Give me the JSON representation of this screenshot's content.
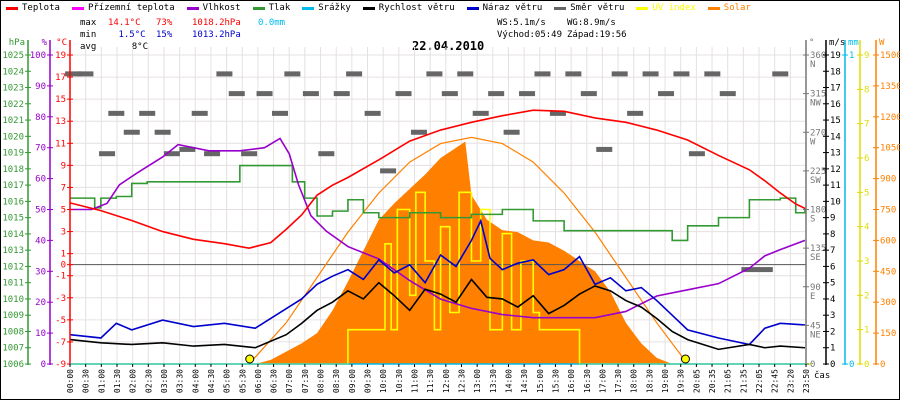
{
  "legend": [
    {
      "label": "Teplota",
      "color": "#ff0000"
    },
    {
      "label": "Přízemní teplota",
      "color": "#ff00ff"
    },
    {
      "label": "Vlhkost",
      "color": "#9900cc"
    },
    {
      "label": "Tlak",
      "color": "#339933"
    },
    {
      "label": "Srážky",
      "color": "#00bbee"
    },
    {
      "label": "Rychlost větru",
      "color": "#000000"
    },
    {
      "label": "Náraz větru",
      "color": "#0000cc"
    },
    {
      "label": "Směr větru",
      "color": "#666666"
    },
    {
      "label": "UV index",
      "color": "#ffff00"
    },
    {
      "label": "Solar",
      "color": "#ff8000"
    }
  ],
  "stats": {
    "max_label": "max",
    "max_temp": "14.1°C",
    "max_hum": "73%",
    "max_press": "1018.2hPa",
    "max_rain": "0.0mm",
    "min_label": "min",
    "min_temp": "1.5°C",
    "min_hum": "15%",
    "min_press": "1013.2hPa",
    "avg_label": "avg",
    "avg_temp": "8°C"
  },
  "wind_info": {
    "ws": "WS:5.1m/s",
    "wg": "WG:8.9m/s",
    "sunrise": "Východ:05:49",
    "sunset": "Západ:19:56"
  },
  "chart_data": {
    "type": "line",
    "title": "22.04.2010",
    "xlabel": "čas",
    "x_tick_labels": [
      "00:00",
      "00:30",
      "01:00",
      "01:30",
      "02:00",
      "02:30",
      "03:00",
      "03:30",
      "04:00",
      "04:30",
      "05:00",
      "05:30",
      "06:00",
      "06:30",
      "07:00",
      "07:30",
      "08:00",
      "08:30",
      "09:00",
      "09:30",
      "10:00",
      "10:30",
      "11:00",
      "11:30",
      "12:00",
      "12:30",
      "13:00",
      "13:30",
      "14:00",
      "14:30",
      "15:00",
      "15:30",
      "16:00",
      "16:30",
      "17:00",
      "17:30",
      "18:00",
      "18:30",
      "19:00",
      "19:30",
      "20:05",
      "20:35",
      "21:05",
      "21:35",
      "22:05",
      "22:45",
      "23:20",
      "23:50"
    ],
    "axes": {
      "hPa": {
        "unit": "hPa",
        "range": [
          1006,
          1025
        ],
        "ticks": [
          1006,
          1007,
          1008,
          1009,
          1010,
          1011,
          1012,
          1013,
          1014,
          1015,
          1016,
          1017,
          1018,
          1019,
          1020,
          1021,
          1022,
          1023,
          1024,
          1025
        ]
      },
      "pct": {
        "unit": "%",
        "range": [
          0,
          100
        ],
        "ticks": [
          0,
          10,
          20,
          30,
          40,
          50,
          60,
          70,
          80,
          90,
          100
        ]
      },
      "temp": {
        "unit": "°C",
        "range": [
          -9,
          19
        ],
        "ticks": [
          -9,
          -7,
          -5,
          -3,
          -1,
          0,
          1,
          3,
          5,
          7,
          9,
          11,
          13,
          15,
          17,
          19
        ]
      },
      "deg": {
        "unit": "°",
        "range": [
          0,
          360
        ],
        "ticks": [
          0,
          45,
          90,
          135,
          180,
          225,
          270,
          315,
          360
        ],
        "names": [
          "",
          "NE",
          "E",
          "SE",
          "S",
          "SW",
          "W",
          "NW",
          "N"
        ]
      },
      "ms": {
        "unit": "m/s",
        "range": [
          0,
          19
        ],
        "ticks": [
          0,
          1,
          2,
          3,
          4,
          5,
          6,
          7,
          8,
          9,
          10,
          11,
          12,
          13,
          14,
          15,
          16,
          17,
          18,
          19
        ]
      },
      "mm": {
        "unit": "mm",
        "range": [
          0,
          1
        ],
        "ticks": [
          0,
          1
        ]
      },
      "uv": {
        "unit": "",
        "range": [
          0,
          9
        ],
        "ticks": [
          0,
          1,
          2,
          3,
          4,
          5,
          6,
          7,
          8,
          9
        ]
      },
      "W": {
        "unit": "W",
        "range": [
          0,
          1500
        ],
        "ticks": [
          0,
          150,
          300,
          450,
          600,
          750,
          900,
          1050,
          1200,
          1350,
          1500
        ]
      }
    },
    "series": [
      {
        "name": "Teplota",
        "axis": "temp",
        "x": [
          0,
          1,
          2,
          3,
          4,
          5,
          5.8,
          6.5,
          7,
          7.5,
          8,
          8.5,
          9,
          10,
          11,
          12,
          13,
          14,
          15,
          16,
          17,
          18,
          19,
          20,
          21,
          22,
          22.5,
          23,
          23.5,
          23.8
        ],
        "y": [
          5.6,
          4.9,
          4.0,
          3.0,
          2.3,
          1.9,
          1.5,
          2.0,
          3.2,
          4.5,
          6.3,
          7.2,
          7.9,
          9.5,
          11.2,
          12.2,
          12.9,
          13.5,
          14.0,
          13.9,
          13.3,
          12.9,
          12.2,
          11.3,
          9.9,
          8.6,
          7.6,
          6.5,
          5.5,
          5.1
        ]
      },
      {
        "name": "Vlhkost",
        "axis": "pct",
        "x": [
          0,
          0.7,
          1.2,
          1.6,
          2.2,
          3,
          3.5,
          4.5,
          5.5,
          6.3,
          6.8,
          7.1,
          7.4,
          7.8,
          8.3,
          9,
          10,
          11,
          12,
          13,
          14,
          15,
          16,
          17,
          18,
          19,
          20,
          21,
          22,
          22.5,
          23,
          23.8
        ],
        "y": [
          50,
          50,
          52,
          58,
          62,
          67,
          71,
          69,
          69,
          70,
          73,
          68,
          58,
          48,
          43,
          38,
          34,
          27,
          21,
          18,
          16,
          15,
          15,
          15,
          17,
          22,
          24,
          26,
          31,
          35,
          37,
          40
        ]
      },
      {
        "name": "Tlak",
        "axis": "hPa",
        "x": [
          0,
          0.8,
          1,
          1.5,
          2,
          2.5,
          5,
          5.5,
          7,
          7.2,
          7.6,
          8,
          8.5,
          9,
          9.5,
          10,
          11,
          12,
          13,
          14,
          15,
          16,
          17,
          18,
          19,
          19.5,
          20,
          21,
          22,
          23,
          23.5,
          23.8
        ],
        "y": [
          1016.2,
          1015.6,
          1016.2,
          1016.3,
          1017.1,
          1017.2,
          1017.2,
          1018.2,
          1018.2,
          1017.2,
          1016.2,
          1015.1,
          1015.4,
          1016.1,
          1015.3,
          1015.0,
          1015.3,
          1015.0,
          1015.2,
          1015.5,
          1014.8,
          1014.2,
          1014.2,
          1014.2,
          1014.2,
          1013.6,
          1014.5,
          1015.0,
          1016.1,
          1016.2,
          1015.3,
          1015.6
        ]
      },
      {
        "name": "Rychlost větru",
        "axis": "ms",
        "x": [
          0,
          1,
          2,
          3,
          4,
          5,
          6,
          7,
          7.5,
          8,
          8.5,
          9,
          9.5,
          10,
          10.5,
          11,
          11.5,
          12,
          12.5,
          13,
          13.5,
          14,
          14.5,
          15,
          15.5,
          16,
          16.5,
          17,
          17.5,
          18,
          18.5,
          19,
          19.5,
          20,
          21,
          22,
          22.5,
          23,
          23.8
        ],
        "y": [
          1.5,
          1.3,
          1.2,
          1.3,
          1.1,
          1.2,
          1.0,
          1.8,
          2.5,
          3.3,
          3.8,
          4.5,
          4.0,
          5.0,
          4.2,
          3.3,
          4.6,
          4.3,
          3.8,
          5.2,
          4.1,
          4.0,
          3.5,
          4.2,
          3.1,
          3.6,
          4.3,
          4.8,
          4.5,
          3.9,
          3.5,
          2.8,
          2.0,
          1.5,
          0.9,
          1.2,
          1.0,
          1.1,
          1.0
        ]
      },
      {
        "name": "Náraz větru",
        "axis": "ms",
        "x": [
          0,
          1,
          1.5,
          2,
          3,
          4,
          5,
          6,
          7,
          7.5,
          8,
          8.5,
          9,
          9.5,
          10,
          10.5,
          11,
          11.5,
          12,
          12.5,
          13,
          13.3,
          13.6,
          14,
          14.5,
          15,
          15.5,
          16,
          16.5,
          17,
          17.5,
          18,
          18.5,
          19,
          19.5,
          20,
          21,
          22,
          22.5,
          23,
          23.8
        ],
        "y": [
          1.8,
          1.6,
          2.5,
          2.1,
          2.7,
          2.3,
          2.5,
          2.2,
          3.4,
          4.0,
          4.9,
          5.4,
          5.8,
          5.2,
          6.4,
          5.6,
          6.1,
          5.0,
          6.7,
          6.0,
          7.6,
          8.8,
          6.5,
          5.8,
          6.2,
          6.4,
          5.5,
          5.8,
          6.6,
          4.9,
          5.3,
          4.5,
          4.7,
          3.9,
          3.0,
          2.1,
          1.6,
          1.2,
          2.2,
          2.5,
          2.4
        ]
      },
      {
        "name": "Solar",
        "axis": "W",
        "type": "area",
        "x": [
          6,
          6.5,
          7,
          7.5,
          8,
          8.5,
          9,
          9.5,
          10,
          10.5,
          11,
          11.5,
          12,
          12.5,
          12.8,
          13,
          13.5,
          14,
          14.5,
          15,
          15.5,
          16,
          16.5,
          17,
          17.5,
          18,
          18.5,
          19,
          19.5
        ],
        "y": [
          0,
          20,
          60,
          100,
          150,
          260,
          400,
          550,
          700,
          780,
          850,
          920,
          1000,
          1050,
          1080,
          820,
          700,
          650,
          640,
          600,
          590,
          550,
          500,
          450,
          350,
          200,
          100,
          30,
          0
        ]
      },
      {
        "name": "Solar (theoretical)",
        "axis": "W",
        "x": [
          5.8,
          7,
          8,
          9,
          10,
          11,
          12,
          13,
          14,
          15,
          16,
          17,
          18,
          19,
          20
        ],
        "y": [
          0,
          200,
          420,
          640,
          830,
          980,
          1070,
          1100,
          1070,
          980,
          830,
          640,
          420,
          200,
          0
        ]
      },
      {
        "name": "UV index",
        "axis": "uv",
        "x": [
          0,
          9,
          9,
          10,
          10.2,
          10.4,
          10.6,
          11,
          11.2,
          11.5,
          11.8,
          12,
          12.3,
          12.6,
          13,
          13.3,
          13.6,
          14,
          14.3,
          14.6,
          15,
          15.2,
          15.5,
          16,
          16.5,
          16.5,
          24
        ],
        "y": [
          0,
          0,
          1,
          1,
          3.5,
          1,
          4.5,
          2,
          5,
          3,
          1,
          4,
          1.5,
          5,
          3,
          4.5,
          1,
          3.8,
          1,
          3,
          1.5,
          1,
          1,
          1,
          1,
          0,
          0
        ]
      },
      {
        "name": "Srážky",
        "axis": "mm",
        "x": [
          0,
          24
        ],
        "y": [
          0,
          0
        ]
      },
      {
        "name": "Směr větru",
        "axis": "deg",
        "type": "scatter",
        "x": [
          0.1,
          0.5,
          1.2,
          1.5,
          2,
          2.5,
          3,
          3.3,
          3.8,
          4.2,
          4.6,
          5,
          5.4,
          5.8,
          6.3,
          6.8,
          7.2,
          7.8,
          8.3,
          8.8,
          9.2,
          9.8,
          10.3,
          10.8,
          11.3,
          11.8,
          12.3,
          12.8,
          13.3,
          13.8,
          14.3,
          14.8,
          15.3,
          15.8,
          16.3,
          16.8,
          17.3,
          17.8,
          18.3,
          18.8,
          19.3,
          19.8,
          20.3,
          20.8,
          21.3,
          22,
          22.5,
          23
        ],
        "y": [
          338,
          338,
          245,
          292,
          270,
          292,
          270,
          245,
          250,
          292,
          245,
          338,
          315,
          245,
          315,
          292,
          338,
          315,
          245,
          315,
          338,
          292,
          225,
          315,
          270,
          338,
          315,
          338,
          292,
          315,
          270,
          315,
          338,
          292,
          338,
          315,
          250,
          338,
          292,
          338,
          315,
          338,
          245,
          338,
          315,
          110,
          110,
          338
        ]
      }
    ],
    "markers": [
      {
        "label": "sunrise",
        "time": 5.82
      },
      {
        "label": "sunset",
        "time": 19.93
      }
    ],
    "zero_line": 0
  }
}
